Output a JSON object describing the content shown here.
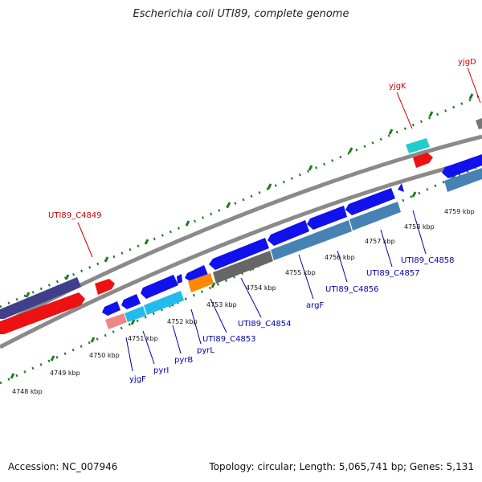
{
  "title": "Escherichia coli UTI89, complete genome",
  "footer": {
    "accession": "Accession: NC_007946",
    "topology": "Topology: circular; Length: 5,065,741 bp; Genes: 5,131"
  },
  "colors": {
    "backbone": "#8a8a8a",
    "tick": "#1f7a1f",
    "forward_label": "#cc0000",
    "reverse_label": "#0000aa",
    "kbp_label": "#111111"
  },
  "kbp_labels": [
    "4748 kbp",
    "4749 kbp",
    "4750 kbp",
    "4751 kbp",
    "4752 kbp",
    "4753 kbp",
    "4754 kbp",
    "4755 kbp",
    "4756 kbp",
    "4757 kbp",
    "4758 kbp",
    "4759 kbp"
  ],
  "forward_gene_labels": [
    "UTI89_C4849",
    "yjgK",
    "yjgD"
  ],
  "reverse_gene_labels": [
    "yjgF",
    "pyrI",
    "pyrB",
    "pyrL",
    "UTI89_C4853",
    "UTI89_C4854",
    "argF",
    "UTI89_C4856",
    "UTI89_C4857",
    "UTI89_C4858"
  ]
}
